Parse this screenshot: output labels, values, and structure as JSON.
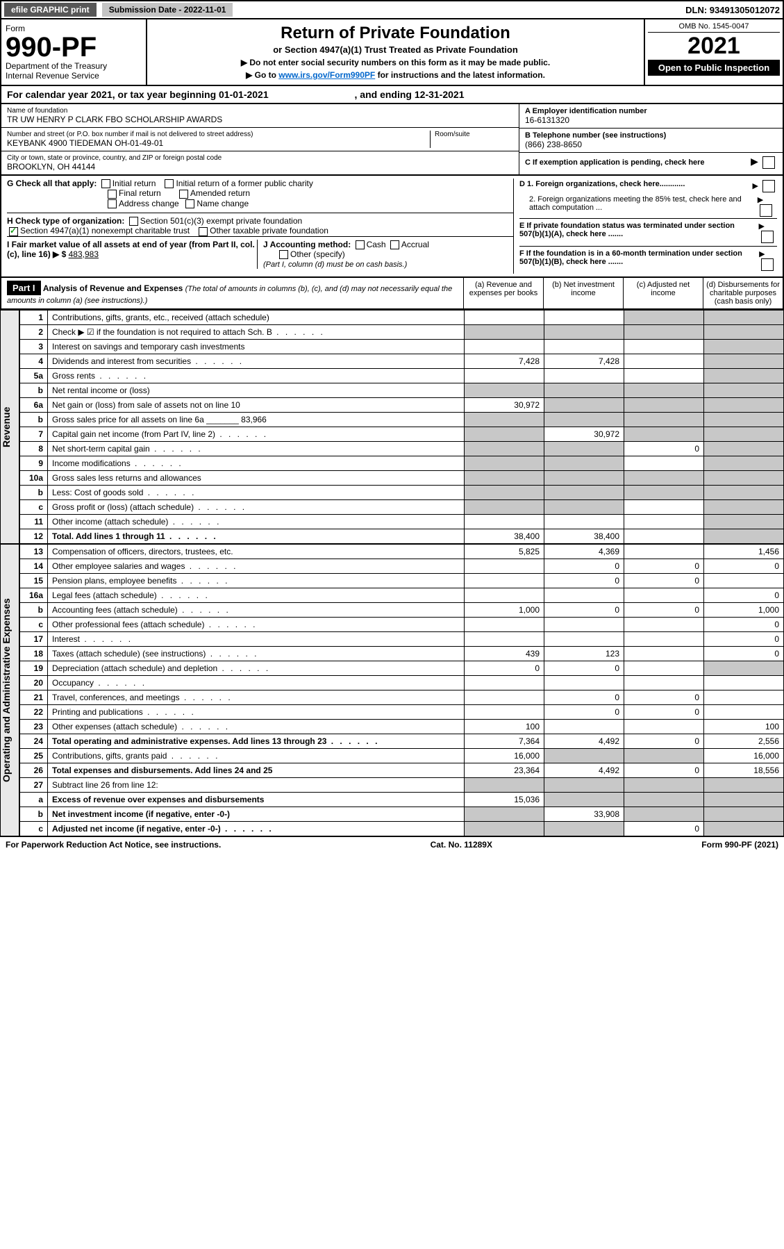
{
  "top": {
    "efile": "efile GRAPHIC print",
    "submission": "Submission Date - 2022-11-01",
    "dln": "DLN: 93491305012072"
  },
  "header": {
    "form_label": "Form",
    "form_no": "990-PF",
    "dept": "Department of the Treasury\nInternal Revenue Service",
    "title": "Return of Private Foundation",
    "subtitle": "or Section 4947(a)(1) Trust Treated as Private Foundation",
    "note1": "▶ Do not enter social security numbers on this form as it may be made public.",
    "note2_pre": "▶ Go to ",
    "note2_link": "www.irs.gov/Form990PF",
    "note2_post": " for instructions and the latest information.",
    "omb": "OMB No. 1545-0047",
    "year": "2021",
    "inspect": "Open to Public Inspection"
  },
  "calendar": {
    "prefix": "For calendar year 2021, or tax year beginning ",
    "begin": "01-01-2021",
    "mid": " , and ending ",
    "end": "12-31-2021"
  },
  "info": {
    "name_lbl": "Name of foundation",
    "name": "TR UW HENRY P CLARK FBO SCHOLARSHIP AWARDS",
    "addr_lbl": "Number and street (or P.O. box number if mail is not delivered to street address)",
    "addr": "KEYBANK 4900 TIEDEMAN OH-01-49-01",
    "room_lbl": "Room/suite",
    "city_lbl": "City or town, state or province, country, and ZIP or foreign postal code",
    "city": "BROOKLYN, OH  44144",
    "a_lbl": "A Employer identification number",
    "ein": "16-6131320",
    "b_lbl": "B Telephone number (see instructions)",
    "phone": "(866) 238-8650",
    "c_lbl": "C If exemption application is pending, check here"
  },
  "checks": {
    "g_lbl": "G Check all that apply:",
    "g_opts": [
      "Initial return",
      "Initial return of a former public charity",
      "Final return",
      "Amended return",
      "Address change",
      "Name change"
    ],
    "h_lbl": "H Check type of organization:",
    "h_opt1": "Section 501(c)(3) exempt private foundation",
    "h_opt2": "Section 4947(a)(1) nonexempt charitable trust",
    "h_opt3": "Other taxable private foundation",
    "i_lbl": "I Fair market value of all assets at end of year (from Part II, col. (c), line 16) ▶ $",
    "i_val": "483,983",
    "j_lbl": "J Accounting method:",
    "j_opts": [
      "Cash",
      "Accrual",
      "Other (specify)"
    ],
    "j_note": "(Part I, column (d) must be on cash basis.)",
    "d1": "D 1. Foreign organizations, check here............",
    "d2": "2. Foreign organizations meeting the 85% test, check here and attach computation ...",
    "e": "E If private foundation status was terminated under section 507(b)(1)(A), check here .......",
    "f": "F If the foundation is in a 60-month termination under section 507(b)(1)(B), check here ......."
  },
  "part1": {
    "hdr": "Part I",
    "title": "Analysis of Revenue and Expenses",
    "title_note": "(The total of amounts in columns (b), (c), and (d) may not necessarily equal the amounts in column (a) (see instructions).)",
    "cols": [
      "(a) Revenue and expenses per books",
      "(b) Net investment income",
      "(c) Adjusted net income",
      "(d) Disbursements for charitable purposes (cash basis only)"
    ]
  },
  "sections": {
    "revenue": "Revenue",
    "expenses": "Operating and Administrative Expenses"
  },
  "rows": [
    {
      "n": "1",
      "d": "Contributions, gifts, grants, etc., received (attach schedule)",
      "a": "",
      "b": "",
      "c": "g",
      "e": "g"
    },
    {
      "n": "2",
      "d": "Check ▶ ☑ if the foundation is not required to attach Sch. B",
      "a": "g",
      "b": "g",
      "c": "g",
      "e": "g",
      "dots": true
    },
    {
      "n": "3",
      "d": "Interest on savings and temporary cash investments",
      "a": "",
      "b": "",
      "c": "",
      "e": "g"
    },
    {
      "n": "4",
      "d": "Dividends and interest from securities",
      "a": "7,428",
      "b": "7,428",
      "c": "",
      "e": "g",
      "dots": true
    },
    {
      "n": "5a",
      "d": "Gross rents",
      "a": "",
      "b": "",
      "c": "",
      "e": "g",
      "dots": true
    },
    {
      "n": "b",
      "d": "Net rental income or (loss)",
      "a": "g",
      "b": "g",
      "c": "g",
      "e": "g",
      "inset": true
    },
    {
      "n": "6a",
      "d": "Net gain or (loss) from sale of assets not on line 10",
      "a": "30,972",
      "b": "g",
      "c": "g",
      "e": "g"
    },
    {
      "n": "b",
      "d": "Gross sales price for all assets on line 6a _______ 83,966",
      "a": "g",
      "b": "g",
      "c": "g",
      "e": "g"
    },
    {
      "n": "7",
      "d": "Capital gain net income (from Part IV, line 2)",
      "a": "g",
      "b": "30,972",
      "c": "g",
      "e": "g",
      "dots": true
    },
    {
      "n": "8",
      "d": "Net short-term capital gain",
      "a": "g",
      "b": "g",
      "c": "0",
      "e": "g",
      "dots": true
    },
    {
      "n": "9",
      "d": "Income modifications",
      "a": "g",
      "b": "g",
      "c": "",
      "e": "g",
      "dots": true
    },
    {
      "n": "10a",
      "d": "Gross sales less returns and allowances",
      "a": "g",
      "b": "g",
      "c": "g",
      "e": "g",
      "inset": true
    },
    {
      "n": "b",
      "d": "Less: Cost of goods sold",
      "a": "g",
      "b": "g",
      "c": "g",
      "e": "g",
      "inset": true,
      "dots": true
    },
    {
      "n": "c",
      "d": "Gross profit or (loss) (attach schedule)",
      "a": "g",
      "b": "g",
      "c": "",
      "e": "g",
      "dots": true
    },
    {
      "n": "11",
      "d": "Other income (attach schedule)",
      "a": "",
      "b": "",
      "c": "",
      "e": "g",
      "dots": true
    },
    {
      "n": "12",
      "d": "Total. Add lines 1 through 11",
      "a": "38,400",
      "b": "38,400",
      "c": "",
      "e": "g",
      "bold": true,
      "dots": true
    }
  ],
  "exp_rows": [
    {
      "n": "13",
      "d": "Compensation of officers, directors, trustees, etc.",
      "a": "5,825",
      "b": "4,369",
      "c": "",
      "e": "1,456"
    },
    {
      "n": "14",
      "d": "Other employee salaries and wages",
      "a": "",
      "b": "0",
      "c": "0",
      "e": "0",
      "dots": true
    },
    {
      "n": "15",
      "d": "Pension plans, employee benefits",
      "a": "",
      "b": "0",
      "c": "0",
      "e": "",
      "dots": true
    },
    {
      "n": "16a",
      "d": "Legal fees (attach schedule)",
      "a": "",
      "b": "",
      "c": "",
      "e": "0",
      "dots": true
    },
    {
      "n": "b",
      "d": "Accounting fees (attach schedule)",
      "a": "1,000",
      "b": "0",
      "c": "0",
      "e": "1,000",
      "dots": true
    },
    {
      "n": "c",
      "d": "Other professional fees (attach schedule)",
      "a": "",
      "b": "",
      "c": "",
      "e": "0",
      "dots": true
    },
    {
      "n": "17",
      "d": "Interest",
      "a": "",
      "b": "",
      "c": "",
      "e": "0",
      "dots": true
    },
    {
      "n": "18",
      "d": "Taxes (attach schedule) (see instructions)",
      "a": "439",
      "b": "123",
      "c": "",
      "e": "0",
      "dots": true
    },
    {
      "n": "19",
      "d": "Depreciation (attach schedule) and depletion",
      "a": "0",
      "b": "0",
      "c": "",
      "e": "g",
      "dots": true
    },
    {
      "n": "20",
      "d": "Occupancy",
      "a": "",
      "b": "",
      "c": "",
      "e": "",
      "dots": true
    },
    {
      "n": "21",
      "d": "Travel, conferences, and meetings",
      "a": "",
      "b": "0",
      "c": "0",
      "e": "",
      "dots": true
    },
    {
      "n": "22",
      "d": "Printing and publications",
      "a": "",
      "b": "0",
      "c": "0",
      "e": "",
      "dots": true
    },
    {
      "n": "23",
      "d": "Other expenses (attach schedule)",
      "a": "100",
      "b": "",
      "c": "",
      "e": "100",
      "dots": true
    },
    {
      "n": "24",
      "d": "Total operating and administrative expenses. Add lines 13 through 23",
      "a": "7,364",
      "b": "4,492",
      "c": "0",
      "e": "2,556",
      "bold": true,
      "dots": true
    },
    {
      "n": "25",
      "d": "Contributions, gifts, grants paid",
      "a": "16,000",
      "b": "g",
      "c": "g",
      "e": "16,000",
      "dots": true
    },
    {
      "n": "26",
      "d": "Total expenses and disbursements. Add lines 24 and 25",
      "a": "23,364",
      "b": "4,492",
      "c": "0",
      "e": "18,556",
      "bold": true
    },
    {
      "n": "27",
      "d": "Subtract line 26 from line 12:",
      "a": "g",
      "b": "g",
      "c": "g",
      "e": "g"
    },
    {
      "n": "a",
      "d": "Excess of revenue over expenses and disbursements",
      "a": "15,036",
      "b": "g",
      "c": "g",
      "e": "g",
      "bold": true
    },
    {
      "n": "b",
      "d": "Net investment income (if negative, enter -0-)",
      "a": "g",
      "b": "33,908",
      "c": "g",
      "e": "g",
      "bold": true
    },
    {
      "n": "c",
      "d": "Adjusted net income (if negative, enter -0-)",
      "a": "g",
      "b": "g",
      "c": "0",
      "e": "g",
      "bold": true,
      "dots": true
    }
  ],
  "footer": {
    "left": "For Paperwork Reduction Act Notice, see instructions.",
    "mid": "Cat. No. 11289X",
    "right": "Form 990-PF (2021)"
  },
  "colors": {
    "grey_cell": "#c8c8c8",
    "link": "#0066cc",
    "check_green": "#1a9e1a",
    "btn_dark": "#575757",
    "btn_light": "#c4c4c4"
  }
}
